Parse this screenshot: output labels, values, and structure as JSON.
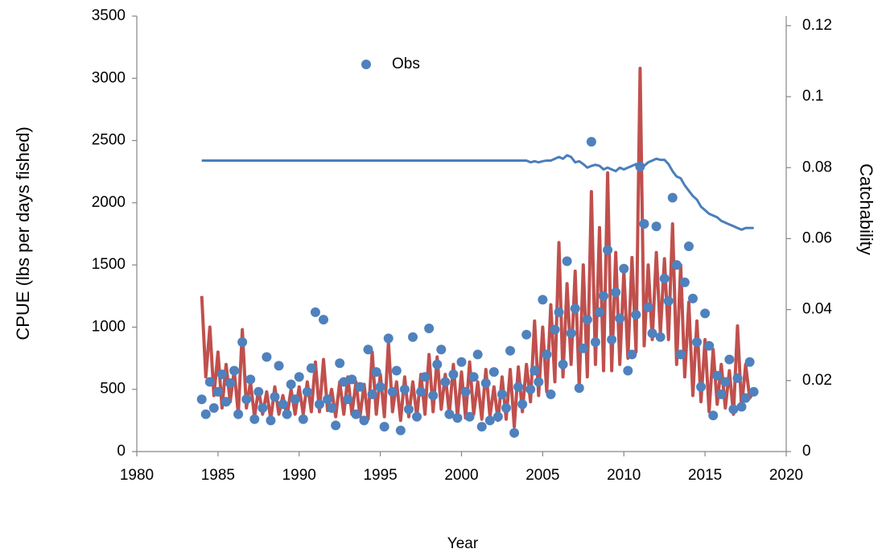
{
  "chart_data": {
    "type": "scatter",
    "xlabel": "Year",
    "ylabel": "CPUE (lbs per days fished)",
    "y2label": "Catchability",
    "xlim": [
      1980,
      2020
    ],
    "xticks": [
      1980,
      1985,
      1990,
      1995,
      2000,
      2005,
      2010,
      2015,
      2020
    ],
    "ylim": [
      0,
      3500
    ],
    "yticks": [
      0,
      500,
      1000,
      1500,
      2000,
      2500,
      3000,
      3500
    ],
    "y2lim": [
      0,
      0.1227
    ],
    "y2ticks": [
      0,
      0.02,
      0.04,
      0.06,
      0.08,
      0.1,
      0.12
    ],
    "legend": "top",
    "grid": false,
    "x": [
      1984,
      1984.25,
      1984.5,
      1984.75,
      1985,
      1985.25,
      1985.5,
      1985.75,
      1986,
      1986.25,
      1986.5,
      1986.75,
      1987,
      1987.25,
      1987.5,
      1987.75,
      1988,
      1988.25,
      1988.5,
      1988.75,
      1989,
      1989.25,
      1989.5,
      1989.75,
      1990,
      1990.25,
      1990.5,
      1990.75,
      1991,
      1991.25,
      1991.5,
      1991.75,
      1992,
      1992.25,
      1992.5,
      1992.75,
      1993,
      1993.25,
      1993.5,
      1993.75,
      1994,
      1994.25,
      1994.5,
      1994.75,
      1995,
      1995.25,
      1995.5,
      1995.75,
      1996,
      1996.25,
      1996.5,
      1996.75,
      1997,
      1997.25,
      1997.5,
      1997.75,
      1998,
      1998.25,
      1998.5,
      1998.75,
      1999,
      1999.25,
      1999.5,
      1999.75,
      2000,
      2000.25,
      2000.5,
      2000.75,
      2001,
      2001.25,
      2001.5,
      2001.75,
      2002,
      2002.25,
      2002.5,
      2002.75,
      2003,
      2003.25,
      2003.5,
      2003.75,
      2004,
      2004.25,
      2004.5,
      2004.75,
      2005,
      2005.25,
      2005.5,
      2005.75,
      2006,
      2006.25,
      2006.5,
      2006.75,
      2007,
      2007.25,
      2007.5,
      2007.75,
      2008,
      2008.25,
      2008.5,
      2008.75,
      2009,
      2009.25,
      2009.5,
      2009.75,
      2010,
      2010.25,
      2010.5,
      2010.75,
      2011,
      2011.25,
      2011.5,
      2011.75,
      2012,
      2012.25,
      2012.5,
      2012.75,
      2013,
      2013.25,
      2013.5,
      2013.75,
      2014,
      2014.25,
      2014.5,
      2014.75,
      2015,
      2015.25,
      2015.5,
      2015.75,
      2016,
      2016.25,
      2016.5,
      2016.75,
      2017,
      2017.25,
      2017.5,
      2017.75,
      2018
    ],
    "series": [
      {
        "kind": "line",
        "color": "#c0504d",
        "values": [
          1250,
          600,
          1000,
          450,
          800,
          350,
          700,
          400,
          650,
          300,
          980,
          350,
          560,
          280,
          500,
          300,
          480,
          260,
          520,
          300,
          450,
          280,
          500,
          300,
          520,
          300,
          560,
          320,
          720,
          320,
          740,
          330,
          500,
          280,
          560,
          300,
          600,
          300,
          560,
          280,
          540,
          260,
          800,
          300,
          620,
          280,
          880,
          320,
          560,
          250,
          600,
          280,
          560,
          280,
          620,
          300,
          780,
          320,
          760,
          340,
          620,
          300,
          700,
          280,
          640,
          270,
          720,
          300,
          560,
          260,
          660,
          280,
          520,
          250,
          600,
          260,
          660,
          200,
          680,
          320,
          700,
          400,
          1050,
          450,
          1000,
          480,
          1180,
          560,
          1680,
          600,
          1350,
          700,
          1450,
          520,
          1500,
          600,
          2090,
          700,
          1800,
          650,
          2240,
          650,
          1600,
          700,
          1450,
          750,
          1560,
          800,
          3080,
          850,
          1500,
          900,
          1600,
          950,
          1550,
          900,
          1830,
          700,
          1500,
          600,
          1200,
          450,
          1050,
          400,
          900,
          320,
          820,
          380,
          700,
          350,
          650,
          300,
          1010,
          350,
          700,
          430,
          480
        ]
      },
      {
        "kind": "scatter",
        "name": "Obs",
        "color": "#4f81bd",
        "values": [
          420,
          300,
          560,
          350,
          480,
          620,
          400,
          550,
          650,
          300,
          880,
          420,
          580,
          260,
          480,
          350,
          760,
          250,
          440,
          690,
          380,
          300,
          540,
          420,
          600,
          260,
          480,
          670,
          1120,
          380,
          1060,
          420,
          350,
          210,
          710,
          560,
          420,
          580,
          300,
          520,
          250,
          820,
          460,
          640,
          520,
          200,
          910,
          480,
          650,
          170,
          500,
          340,
          920,
          280,
          480,
          600,
          990,
          450,
          700,
          820,
          560,
          300,
          620,
          270,
          720,
          480,
          280,
          600,
          780,
          200,
          550,
          250,
          640,
          280,
          460,
          350,
          810,
          150,
          520,
          380,
          940,
          500,
          650,
          560,
          1220,
          780,
          460,
          980,
          1120,
          700,
          1530,
          950,
          1150,
          510,
          830,
          1060,
          2490,
          880,
          1120,
          1250,
          1620,
          900,
          1280,
          1070,
          1470,
          650,
          780,
          1100,
          2290,
          1830,
          1160,
          950,
          1810,
          920,
          1390,
          1210,
          2040,
          1500,
          780,
          1360,
          1650,
          1230,
          880,
          520,
          1110,
          850,
          290,
          610,
          460,
          560,
          740,
          340,
          590,
          360,
          430,
          720,
          480
        ]
      },
      {
        "kind": "line",
        "axis": "y2",
        "color": "#4a7ebb",
        "values": [
          0.082,
          0.082,
          0.082,
          0.082,
          0.082,
          0.082,
          0.082,
          0.082,
          0.082,
          0.082,
          0.082,
          0.082,
          0.082,
          0.082,
          0.082,
          0.082,
          0.082,
          0.082,
          0.082,
          0.082,
          0.082,
          0.082,
          0.082,
          0.082,
          0.082,
          0.082,
          0.082,
          0.082,
          0.082,
          0.082,
          0.082,
          0.082,
          0.082,
          0.082,
          0.082,
          0.082,
          0.082,
          0.082,
          0.082,
          0.082,
          0.082,
          0.082,
          0.082,
          0.082,
          0.082,
          0.082,
          0.082,
          0.082,
          0.082,
          0.082,
          0.082,
          0.082,
          0.082,
          0.082,
          0.082,
          0.082,
          0.082,
          0.082,
          0.082,
          0.082,
          0.082,
          0.082,
          0.082,
          0.082,
          0.082,
          0.082,
          0.082,
          0.082,
          0.082,
          0.082,
          0.082,
          0.082,
          0.082,
          0.082,
          0.082,
          0.082,
          0.082,
          0.082,
          0.082,
          0.082,
          0.082,
          0.0815,
          0.0818,
          0.0815,
          0.0818,
          0.082,
          0.082,
          0.0825,
          0.083,
          0.0825,
          0.0835,
          0.083,
          0.0815,
          0.0818,
          0.081,
          0.08,
          0.0805,
          0.0808,
          0.0805,
          0.0795,
          0.08,
          0.0795,
          0.079,
          0.08,
          0.0795,
          0.08,
          0.0805,
          0.081,
          0.081,
          0.0805,
          0.0815,
          0.082,
          0.0825,
          0.0822,
          0.0822,
          0.081,
          0.079,
          0.0775,
          0.077,
          0.075,
          0.0735,
          0.072,
          0.071,
          0.069,
          0.068,
          0.067,
          0.0665,
          0.066,
          0.065,
          0.0645,
          0.064,
          0.0635,
          0.063,
          0.0625,
          0.063,
          0.063,
          0.063
        ]
      }
    ]
  }
}
